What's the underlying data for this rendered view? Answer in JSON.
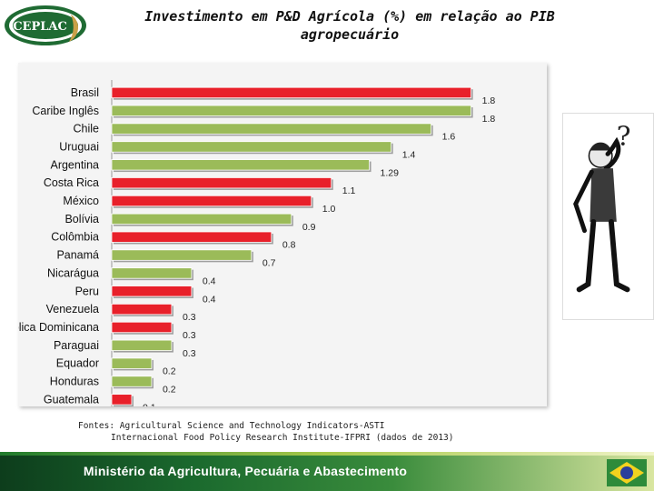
{
  "header": {
    "logo_text": "CEPLAC",
    "title_line1": "Investimento em P&D Agrícola (%) em relação ao PIB",
    "title_line2": "agropecuário"
  },
  "colors": {
    "red": "#e8202a",
    "green": "#9bbb59",
    "panel": "#f4f4f4"
  },
  "chart_data": {
    "type": "bar",
    "orientation": "horizontal",
    "title": "Investimento em P&D Agrícola (%) em relação ao PIB agropecuário",
    "categories": [
      "Brasil",
      "Caribe Inglês",
      "Chile",
      "Uruguai",
      "Argentina",
      "Costa Rica",
      "México",
      "Bolívia",
      "Colômbia",
      "Panamá",
      "Nicarágua",
      "Peru",
      "Venezuela",
      "República Dominicana",
      "Paraguai",
      "Equador",
      "Honduras",
      "Guatemala"
    ],
    "values": [
      1.8,
      1.8,
      1.6,
      1.4,
      1.29,
      1.1,
      1.0,
      0.9,
      0.8,
      0.7,
      0.4,
      0.4,
      0.3,
      0.3,
      0.3,
      0.2,
      0.2,
      0.1
    ],
    "value_labels": [
      "1.8",
      "1.8",
      "1.6",
      "1.4",
      "1.29",
      "1.1",
      "1.0",
      "0.9",
      "0.8",
      "0.7",
      "0.4",
      "0.4",
      "0.3",
      "0.3",
      "0.3",
      "0.2",
      "0.2",
      "0.1"
    ],
    "bar_colors": [
      "red",
      "green",
      "green",
      "green",
      "green",
      "red",
      "red",
      "green",
      "red",
      "green",
      "green",
      "red",
      "red",
      "red",
      "green",
      "green",
      "green",
      "red"
    ],
    "xlim": [
      0,
      1.92
    ],
    "grid": false,
    "legend": "none"
  },
  "source": {
    "line1": "Fontes: Agricultural Science and Technology Indicators-ASTI",
    "line2": "Internacional Food Policy Research Institute-IFPRI (dados de 2013)"
  },
  "figure": {
    "mark": "?"
  },
  "footer": {
    "text": "Ministério da Agricultura, Pecuária e Abastecimento"
  }
}
